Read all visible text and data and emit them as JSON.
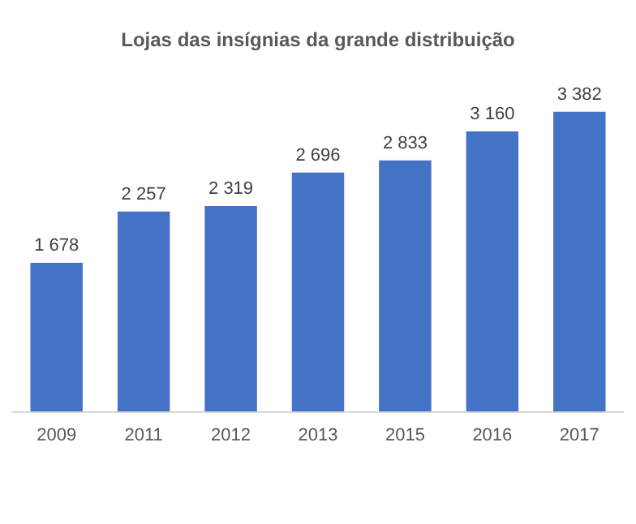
{
  "chart_data": {
    "type": "bar",
    "title": "Lojas das insígnias da grande distribuição",
    "categories": [
      "2009",
      "2011",
      "2012",
      "2013",
      "2015",
      "2016",
      "2017"
    ],
    "values": [
      1678,
      2257,
      2319,
      2696,
      2833,
      3160,
      3382
    ],
    "value_labels": [
      "1 678",
      "2 257",
      "2 319",
      "2 696",
      "2 833",
      "3 160",
      "3 382"
    ],
    "color": "#4472c4",
    "grid": false,
    "legend": false
  }
}
